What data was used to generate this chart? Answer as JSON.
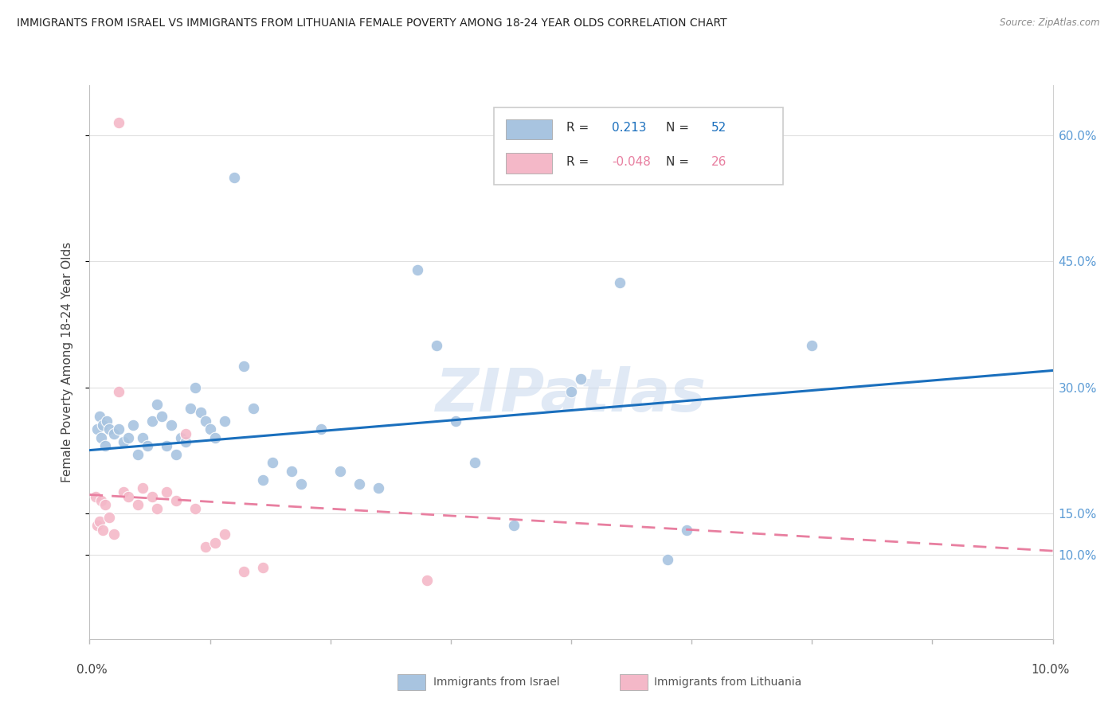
{
  "title": "IMMIGRANTS FROM ISRAEL VS IMMIGRANTS FROM LITHUANIA FEMALE POVERTY AMONG 18-24 YEAR OLDS CORRELATION CHART",
  "source": "Source: ZipAtlas.com",
  "ylabel": "Female Poverty Among 18-24 Year Olds",
  "israel_R": 0.213,
  "israel_N": 52,
  "lithuania_R": -0.048,
  "lithuania_N": 26,
  "israel_color": "#a8c4e0",
  "lithuania_color": "#f4b8c8",
  "israel_trend_color": "#1a6fbd",
  "lithuania_trend_color": "#e87fa0",
  "xmin": 0.0,
  "xmax": 10.0,
  "ymin": 0.0,
  "ymax": 66.0,
  "right_yticks": [
    10.0,
    15.0,
    30.0,
    45.0,
    60.0
  ],
  "right_ylabels": [
    "10.0%",
    "15.0%",
    "30.0%",
    "45.0%",
    "60.0%"
  ],
  "israel_trend_x0": 0.0,
  "israel_trend_y0": 22.5,
  "israel_trend_x1": 10.0,
  "israel_trend_y1": 32.0,
  "lith_trend_x0": 0.0,
  "lith_trend_y0": 17.2,
  "lith_trend_x1": 10.0,
  "lith_trend_y1": 10.5,
  "israel_scatter": [
    [
      0.08,
      25.0
    ],
    [
      0.1,
      26.5
    ],
    [
      0.12,
      24.0
    ],
    [
      0.14,
      25.5
    ],
    [
      0.16,
      23.0
    ],
    [
      0.18,
      26.0
    ],
    [
      0.2,
      25.0
    ],
    [
      0.25,
      24.5
    ],
    [
      0.3,
      25.0
    ],
    [
      0.35,
      23.5
    ],
    [
      0.4,
      24.0
    ],
    [
      0.45,
      25.5
    ],
    [
      0.5,
      22.0
    ],
    [
      0.55,
      24.0
    ],
    [
      0.6,
      23.0
    ],
    [
      0.65,
      26.0
    ],
    [
      0.7,
      28.0
    ],
    [
      0.75,
      26.5
    ],
    [
      0.8,
      23.0
    ],
    [
      0.85,
      25.5
    ],
    [
      0.9,
      22.0
    ],
    [
      0.95,
      24.0
    ],
    [
      1.0,
      23.5
    ],
    [
      1.05,
      27.5
    ],
    [
      1.1,
      30.0
    ],
    [
      1.15,
      27.0
    ],
    [
      1.2,
      26.0
    ],
    [
      1.25,
      25.0
    ],
    [
      1.3,
      24.0
    ],
    [
      1.4,
      26.0
    ],
    [
      1.5,
      55.0
    ],
    [
      1.6,
      32.5
    ],
    [
      1.7,
      27.5
    ],
    [
      1.8,
      19.0
    ],
    [
      1.9,
      21.0
    ],
    [
      2.1,
      20.0
    ],
    [
      2.2,
      18.5
    ],
    [
      2.4,
      25.0
    ],
    [
      2.6,
      20.0
    ],
    [
      2.8,
      18.5
    ],
    [
      3.0,
      18.0
    ],
    [
      3.4,
      44.0
    ],
    [
      3.6,
      35.0
    ],
    [
      3.8,
      26.0
    ],
    [
      4.0,
      21.0
    ],
    [
      4.4,
      13.5
    ],
    [
      5.0,
      29.5
    ],
    [
      5.1,
      31.0
    ],
    [
      5.5,
      42.5
    ],
    [
      6.0,
      9.5
    ],
    [
      6.2,
      13.0
    ],
    [
      7.5,
      35.0
    ]
  ],
  "lithuania_scatter": [
    [
      0.06,
      17.0
    ],
    [
      0.08,
      13.5
    ],
    [
      0.1,
      14.0
    ],
    [
      0.12,
      16.5
    ],
    [
      0.14,
      13.0
    ],
    [
      0.16,
      16.0
    ],
    [
      0.2,
      14.5
    ],
    [
      0.25,
      12.5
    ],
    [
      0.3,
      29.5
    ],
    [
      0.35,
      17.5
    ],
    [
      0.4,
      17.0
    ],
    [
      0.5,
      16.0
    ],
    [
      0.55,
      18.0
    ],
    [
      0.65,
      17.0
    ],
    [
      0.7,
      15.5
    ],
    [
      0.8,
      17.5
    ],
    [
      0.9,
      16.5
    ],
    [
      1.0,
      24.5
    ],
    [
      1.1,
      15.5
    ],
    [
      1.2,
      11.0
    ],
    [
      1.3,
      11.5
    ],
    [
      1.4,
      12.5
    ],
    [
      1.6,
      8.0
    ],
    [
      1.8,
      8.5
    ],
    [
      0.3,
      61.5
    ],
    [
      3.5,
      7.0
    ]
  ]
}
